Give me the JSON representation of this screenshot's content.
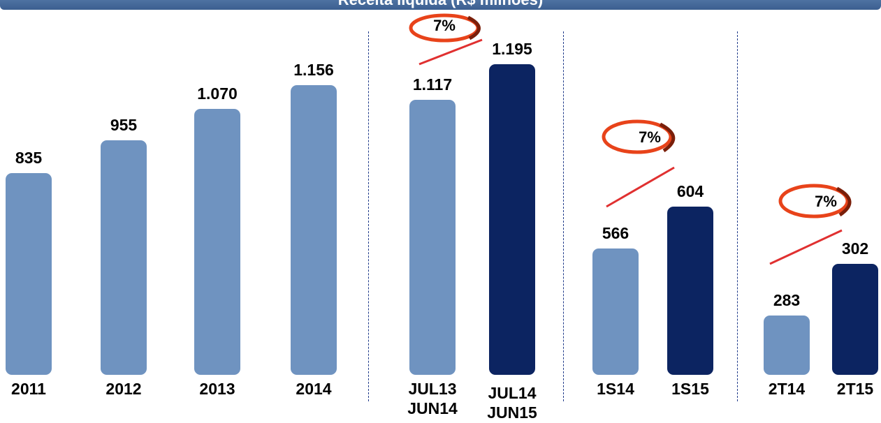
{
  "chart_data": {
    "type": "bar",
    "title": "Receita líquida (R$ milhões)",
    "groups": [
      {
        "categories": [
          "2011",
          "2012",
          "2013",
          "2014"
        ],
        "values": [
          835,
          955,
          1070,
          1156
        ],
        "value_labels": [
          "835",
          "955",
          "1.070",
          "1.156"
        ],
        "colors": [
          "#6f93c0",
          "#6f93c0",
          "#6f93c0",
          "#6f93c0"
        ],
        "ylim": [
          100,
          1365
        ]
      },
      {
        "categories": [
          "JUL13\nJUN14",
          "JUL14\nJUN15"
        ],
        "values": [
          1117,
          1195
        ],
        "value_labels": [
          "1.117",
          "1.195"
        ],
        "colors": [
          "#6f93c0",
          "#0c2461"
        ],
        "ylim": [
          515,
          1275
        ],
        "growth_label": "7%"
      },
      {
        "categories": [
          "1S14",
          "1S15"
        ],
        "values": [
          566,
          604
        ],
        "value_labels": [
          "566",
          "604"
        ],
        "colors": [
          "#6f93c0",
          "#0c2461"
        ],
        "ylim": [
          451,
          766
        ],
        "growth_label": "7%"
      },
      {
        "categories": [
          "2T14",
          "2T15"
        ],
        "values": [
          283,
          302
        ],
        "value_labels": [
          "283",
          "302"
        ],
        "colors": [
          "#6f93c0",
          "#0c2461"
        ],
        "ylim": [
          261,
          389
        ],
        "growth_label": "7%"
      }
    ]
  }
}
